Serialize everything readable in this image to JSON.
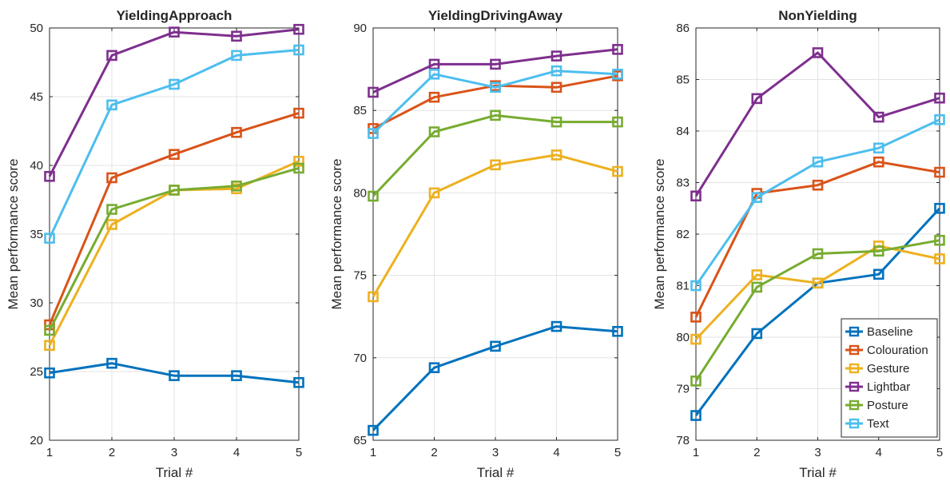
{
  "chart_data": [
    {
      "type": "line",
      "title": "YieldingApproach",
      "xlabel": "Trial #",
      "ylabel": "Mean performance score",
      "x": [
        1,
        2,
        3,
        4,
        5
      ],
      "xlim": [
        1,
        5
      ],
      "ylim": [
        20,
        50
      ],
      "yticks": [
        20,
        25,
        30,
        35,
        40,
        45,
        50
      ],
      "grid": true,
      "series": [
        {
          "name": "Baseline",
          "values": [
            24.9,
            25.6,
            24.7,
            24.7,
            24.2
          ]
        },
        {
          "name": "Colouration",
          "values": [
            28.4,
            39.1,
            40.8,
            42.4,
            43.8
          ]
        },
        {
          "name": "Gesture",
          "values": [
            26.9,
            35.7,
            38.2,
            38.3,
            40.3
          ]
        },
        {
          "name": "Lightbar",
          "values": [
            39.2,
            48.0,
            49.7,
            49.4,
            49.9
          ]
        },
        {
          "name": "Posture",
          "values": [
            28.0,
            36.8,
            38.2,
            38.5,
            39.8
          ]
        },
        {
          "name": "Text",
          "values": [
            34.7,
            44.4,
            45.9,
            48.0,
            48.4
          ]
        }
      ]
    },
    {
      "type": "line",
      "title": "YieldingDrivingAway",
      "xlabel": "Trial #",
      "ylabel": "Mean performance score",
      "x": [
        1,
        2,
        3,
        4,
        5
      ],
      "xlim": [
        1,
        5
      ],
      "ylim": [
        65,
        90
      ],
      "yticks": [
        65,
        70,
        75,
        80,
        85,
        90
      ],
      "grid": true,
      "series": [
        {
          "name": "Baseline",
          "values": [
            65.6,
            69.4,
            70.7,
            71.9,
            71.6
          ]
        },
        {
          "name": "Colouration",
          "values": [
            83.9,
            85.8,
            86.5,
            86.4,
            87.1
          ]
        },
        {
          "name": "Gesture",
          "values": [
            73.7,
            80.0,
            81.7,
            82.3,
            81.3
          ]
        },
        {
          "name": "Lightbar",
          "values": [
            86.1,
            87.8,
            87.8,
            88.3,
            88.7
          ]
        },
        {
          "name": "Posture",
          "values": [
            79.8,
            83.7,
            84.7,
            84.3,
            84.3
          ]
        },
        {
          "name": "Text",
          "values": [
            83.6,
            87.2,
            86.4,
            87.4,
            87.2
          ]
        }
      ]
    },
    {
      "type": "line",
      "title": "NonYielding",
      "xlabel": "Trial #",
      "ylabel": "Mean performance score",
      "x": [
        1,
        2,
        3,
        4,
        5
      ],
      "xlim": [
        1,
        5
      ],
      "ylim": [
        78,
        86
      ],
      "yticks": [
        78,
        79,
        80,
        81,
        82,
        83,
        84,
        85,
        86
      ],
      "grid": true,
      "legend": "bottom-right",
      "series": [
        {
          "name": "Baseline",
          "values": [
            78.48,
            80.07,
            81.05,
            81.22,
            82.5
          ]
        },
        {
          "name": "Colouration",
          "values": [
            80.39,
            82.79,
            82.95,
            83.4,
            83.2
          ]
        },
        {
          "name": "Gesture",
          "values": [
            79.96,
            81.21,
            81.05,
            81.77,
            81.52
          ]
        },
        {
          "name": "Lightbar",
          "values": [
            82.74,
            84.63,
            85.52,
            84.27,
            84.64
          ]
        },
        {
          "name": "Posture",
          "values": [
            79.15,
            80.97,
            81.62,
            81.67,
            81.88
          ]
        },
        {
          "name": "Text",
          "values": [
            81.0,
            82.71,
            83.4,
            83.67,
            84.22
          ]
        }
      ]
    }
  ],
  "series_colors": {
    "Baseline": "#0072BD",
    "Colouration": "#D95319",
    "Gesture": "#EDB120",
    "Lightbar": "#7E2F8E",
    "Posture": "#77AC30",
    "Text": "#4DBEEE"
  }
}
